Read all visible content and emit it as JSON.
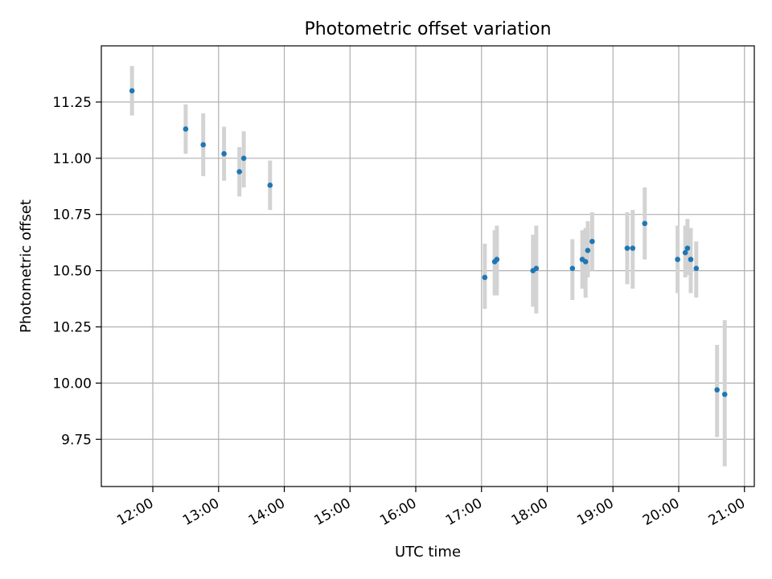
{
  "chart_data": {
    "type": "scatter",
    "title": "Photometric offset variation",
    "xlabel": "UTC time",
    "ylabel": "Photometric offset",
    "x_type": "time",
    "xlim": [
      "11:13",
      "21:09"
    ],
    "ylim": [
      9.54,
      11.5
    ],
    "grid": true,
    "x_ticks": [
      "12:00",
      "13:00",
      "14:00",
      "15:00",
      "16:00",
      "17:00",
      "18:00",
      "19:00",
      "20:00",
      "21:00"
    ],
    "y_ticks": [
      "9.75",
      "10.00",
      "10.25",
      "10.50",
      "10.75",
      "11.00",
      "11.25"
    ],
    "colors": {
      "marker": "#1f77b4",
      "errorbar": "#d3d3d3",
      "grid": "#b0b0b0"
    },
    "series": [
      {
        "points": [
          {
            "x": "11:41",
            "y": 11.3,
            "lo": 11.19,
            "hi": 11.41
          },
          {
            "x": "12:30",
            "y": 11.13,
            "lo": 11.02,
            "hi": 11.24
          },
          {
            "x": "12:46",
            "y": 11.06,
            "lo": 10.92,
            "hi": 11.2
          },
          {
            "x": "13:05",
            "y": 11.02,
            "lo": 10.9,
            "hi": 11.14
          },
          {
            "x": "13:19",
            "y": 10.94,
            "lo": 10.83,
            "hi": 11.05
          },
          {
            "x": "13:23",
            "y": 11.0,
            "lo": 10.87,
            "hi": 11.12
          },
          {
            "x": "13:47",
            "y": 10.88,
            "lo": 10.77,
            "hi": 10.99
          },
          {
            "x": "17:03",
            "y": 10.47,
            "lo": 10.33,
            "hi": 10.62
          },
          {
            "x": "17:12",
            "y": 10.54,
            "lo": 10.39,
            "hi": 10.68
          },
          {
            "x": "17:14",
            "y": 10.55,
            "lo": 10.39,
            "hi": 10.7
          },
          {
            "x": "17:47",
            "y": 10.5,
            "lo": 10.34,
            "hi": 10.66
          },
          {
            "x": "17:50",
            "y": 10.51,
            "lo": 10.31,
            "hi": 10.7
          },
          {
            "x": "18:23",
            "y": 10.51,
            "lo": 10.37,
            "hi": 10.64
          },
          {
            "x": "18:32",
            "y": 10.55,
            "lo": 10.42,
            "hi": 10.68
          },
          {
            "x": "18:35",
            "y": 10.54,
            "lo": 10.38,
            "hi": 10.69
          },
          {
            "x": "18:37",
            "y": 10.59,
            "lo": 10.47,
            "hi": 10.72
          },
          {
            "x": "18:41",
            "y": 10.63,
            "lo": 10.5,
            "hi": 10.76
          },
          {
            "x": "19:13",
            "y": 10.6,
            "lo": 10.44,
            "hi": 10.76
          },
          {
            "x": "19:18",
            "y": 10.6,
            "lo": 10.42,
            "hi": 10.77
          },
          {
            "x": "19:29",
            "y": 10.71,
            "lo": 10.55,
            "hi": 10.87
          },
          {
            "x": "19:59",
            "y": 10.55,
            "lo": 10.4,
            "hi": 10.7
          },
          {
            "x": "20:06",
            "y": 10.58,
            "lo": 10.47,
            "hi": 10.7
          },
          {
            "x": "20:08",
            "y": 10.6,
            "lo": 10.48,
            "hi": 10.73
          },
          {
            "x": "20:11",
            "y": 10.55,
            "lo": 10.4,
            "hi": 10.69
          },
          {
            "x": "20:16",
            "y": 10.51,
            "lo": 10.38,
            "hi": 10.63
          },
          {
            "x": "20:35",
            "y": 9.97,
            "lo": 9.76,
            "hi": 10.17
          },
          {
            "x": "20:42",
            "y": 9.95,
            "lo": 9.63,
            "hi": 10.28
          }
        ]
      }
    ]
  }
}
